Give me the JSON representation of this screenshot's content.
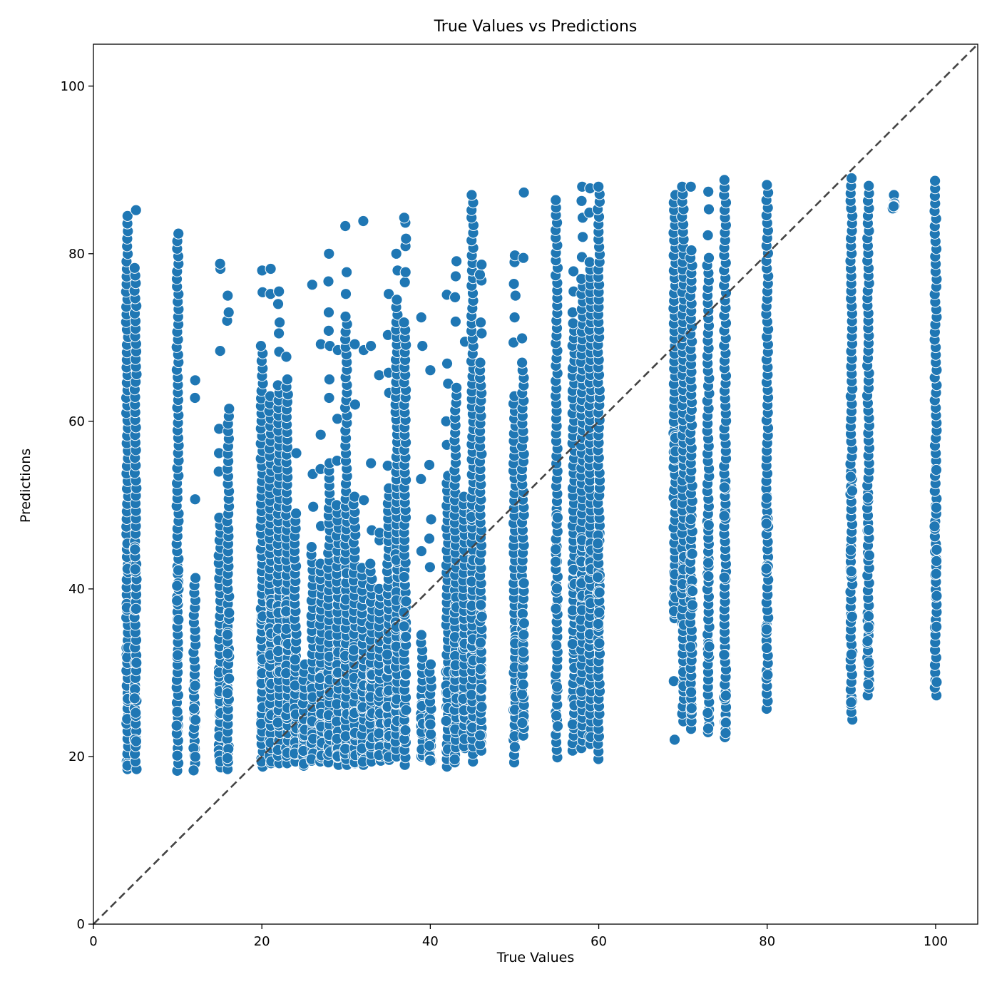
{
  "chart_data": {
    "type": "scatter",
    "title": "True Values vs Predictions",
    "xlabel": "True Values",
    "ylabel": "Predictions",
    "xlim": [
      0,
      105
    ],
    "ylim": [
      0,
      105
    ],
    "xticks": [
      0,
      20,
      40,
      60,
      80,
      100
    ],
    "yticks": [
      0,
      20,
      40,
      60,
      80,
      100
    ],
    "grid": false,
    "marker_color": "#1f77b4",
    "reference_line": {
      "from": [
        0,
        0
      ],
      "to": [
        105,
        105
      ],
      "color": "#444444",
      "style": "dashed"
    },
    "columns": [
      {
        "x": 4,
        "y_min": 18.5,
        "y_max": 84.5,
        "y_outliers": []
      },
      {
        "x": 5,
        "y_min": 18.5,
        "y_max": 78.3,
        "y_outliers": [
          85.2
        ]
      },
      {
        "x": 10,
        "y_min": 18.3,
        "y_max": 82.4,
        "y_outliers": []
      },
      {
        "x": 12,
        "y_min": 18.3,
        "y_max": 41.3,
        "y_outliers": [
          50.7,
          62.8,
          64.9
        ]
      },
      {
        "x": 15,
        "y_min": 18.7,
        "y_max": 48.5,
        "y_outliers": [
          54.0,
          56.2,
          59.1,
          68.4,
          78.2,
          78.8
        ]
      },
      {
        "x": 16,
        "y_min": 18.5,
        "y_max": 61.5,
        "y_outliers": [
          72.0,
          73.0,
          75.0
        ]
      },
      {
        "x": 20,
        "y_min": 18.8,
        "y_max": 69.0,
        "y_outliers": [
          75.4,
          78.0
        ]
      },
      {
        "x": 21,
        "y_min": 19.2,
        "y_max": 63.0,
        "y_outliers": [
          75.2,
          78.2
        ]
      },
      {
        "x": 22,
        "y_min": 19.2,
        "y_max": 64.3,
        "y_outliers": [
          68.3,
          70.5,
          71.8,
          74.0,
          75.5
        ]
      },
      {
        "x": 23,
        "y_min": 19.2,
        "y_max": 65.0,
        "y_outliers": [
          67.7
        ]
      },
      {
        "x": 24,
        "y_min": 19.4,
        "y_max": 49.0,
        "y_outliers": [
          56.2
        ]
      },
      {
        "x": 25,
        "y_min": 18.9,
        "y_max": 31.0,
        "y_outliers": []
      },
      {
        "x": 26,
        "y_min": 19.5,
        "y_max": 45.0,
        "y_outliers": [
          49.8,
          53.7,
          76.3
        ]
      },
      {
        "x": 27,
        "y_min": 19.4,
        "y_max": 43.0,
        "y_outliers": [
          47.5,
          54.3,
          58.4,
          69.2
        ]
      },
      {
        "x": 28,
        "y_min": 19.3,
        "y_max": 55.0,
        "y_outliers": [
          62.8,
          65.0,
          69.0,
          70.8,
          73.0,
          76.7,
          80.0
        ]
      },
      {
        "x": 29,
        "y_min": 19.0,
        "y_max": 50.0,
        "y_outliers": [
          55.3,
          60.3,
          68.5
        ]
      },
      {
        "x": 30,
        "y_min": 19.0,
        "y_max": 72.5,
        "y_outliers": [
          75.2,
          77.8,
          83.3
        ]
      },
      {
        "x": 31,
        "y_min": 19.2,
        "y_max": 51.0,
        "y_outliers": [
          62.0,
          69.2
        ]
      },
      {
        "x": 32,
        "y_min": 19.0,
        "y_max": 42.5,
        "y_outliers": [
          50.6,
          68.5,
          83.9
        ]
      },
      {
        "x": 33,
        "y_min": 19.4,
        "y_max": 43.0,
        "y_outliers": [
          47.0,
          55.0,
          69.0
        ]
      },
      {
        "x": 34,
        "y_min": 19.5,
        "y_max": 40.0,
        "y_outliers": [
          45.8,
          46.7,
          65.5
        ]
      },
      {
        "x": 35,
        "y_min": 19.6,
        "y_max": 52.0,
        "y_outliers": [
          54.7,
          63.4,
          65.8,
          70.3,
          75.2
        ]
      },
      {
        "x": 36,
        "y_min": 20.0,
        "y_max": 74.5,
        "y_outliers": [
          78.0,
          80.0
        ]
      },
      {
        "x": 37,
        "y_min": 19.0,
        "y_max": 71.8,
        "y_outliers": [
          76.6,
          77.8,
          80.9,
          81.8,
          83.7,
          84.3
        ]
      },
      {
        "x": 39,
        "y_min": 20.0,
        "y_max": 34.5,
        "y_outliers": [
          44.5,
          53.1,
          69.0,
          72.4
        ]
      },
      {
        "x": 40,
        "y_min": 19.5,
        "y_max": 31.0,
        "y_outliers": [
          42.6,
          46.0,
          48.3,
          54.8,
          66.1
        ]
      },
      {
        "x": 42,
        "y_min": 18.8,
        "y_max": 53.5,
        "y_outliers": [
          57.2,
          60.0,
          64.5,
          66.9,
          75.1
        ]
      },
      {
        "x": 43,
        "y_min": 19.3,
        "y_max": 64.0,
        "y_outliers": [
          71.9,
          74.8,
          77.3,
          79.1
        ]
      },
      {
        "x": 44,
        "y_min": 21.0,
        "y_max": 51.0,
        "y_outliers": [
          69.5
        ]
      },
      {
        "x": 45,
        "y_min": 19.4,
        "y_max": 87.0,
        "y_outliers": []
      },
      {
        "x": 46,
        "y_min": 20.7,
        "y_max": 67.0,
        "y_outliers": [
          70.5,
          71.8,
          76.8,
          77.5,
          78.7
        ]
      },
      {
        "x": 50,
        "y_min": 19.3,
        "y_max": 63.0,
        "y_outliers": [
          69.4,
          72.4,
          75.0,
          76.4,
          79.0,
          79.8
        ]
      },
      {
        "x": 51,
        "y_min": 22.5,
        "y_max": 67.0,
        "y_outliers": [
          69.9,
          79.5,
          87.3
        ]
      },
      {
        "x": 55,
        "y_min": 19.9,
        "y_max": 86.4,
        "y_outliers": []
      },
      {
        "x": 57,
        "y_min": 20.7,
        "y_max": 71.7,
        "y_outliers": [
          73.0,
          75.5,
          77.9
        ]
      },
      {
        "x": 58,
        "y_min": 21.0,
        "y_max": 77.0,
        "y_outliers": [
          79.6,
          82.0,
          84.3,
          86.3,
          88.0
        ]
      },
      {
        "x": 59,
        "y_min": 21.5,
        "y_max": 79.0,
        "y_outliers": [
          84.9,
          87.8
        ]
      },
      {
        "x": 60,
        "y_min": 19.7,
        "y_max": 88.0,
        "y_outliers": []
      },
      {
        "x": 69,
        "y_min": 36.5,
        "y_max": 87.0,
        "y_outliers": [
          22.0,
          29.0
        ]
      },
      {
        "x": 70,
        "y_min": 24.2,
        "y_max": 88.0,
        "y_outliers": []
      },
      {
        "x": 71,
        "y_min": 23.3,
        "y_max": 80.4,
        "y_outliers": [
          88.0
        ]
      },
      {
        "x": 73,
        "y_min": 22.9,
        "y_max": 79.5,
        "y_outliers": [
          82.2,
          85.3,
          87.4
        ]
      },
      {
        "x": 75,
        "y_min": 22.3,
        "y_max": 88.8,
        "y_outliers": []
      },
      {
        "x": 80,
        "y_min": 25.7,
        "y_max": 88.2,
        "y_outliers": []
      },
      {
        "x": 90,
        "y_min": 24.4,
        "y_max": 89.0,
        "y_outliers": []
      },
      {
        "x": 92,
        "y_min": 27.3,
        "y_max": 88.1,
        "y_outliers": []
      },
      {
        "x": 95,
        "y_min": 85.3,
        "y_max": 87.0,
        "y_outliers": []
      },
      {
        "x": 100,
        "y_min": 27.3,
        "y_max": 88.7,
        "y_outliers": []
      }
    ]
  }
}
